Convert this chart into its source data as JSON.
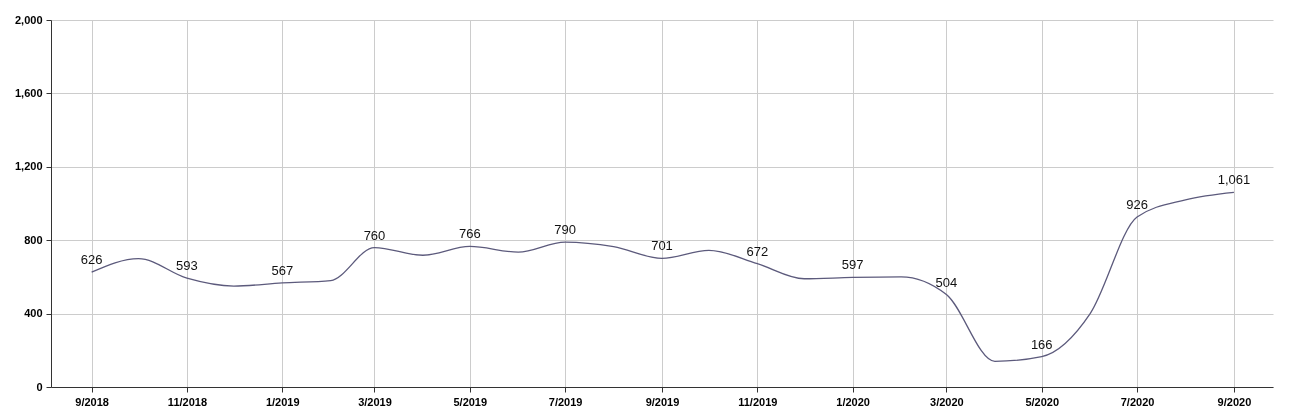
{
  "chart_data": {
    "type": "line",
    "x": [
      "2018-09",
      "2018-10",
      "2018-11",
      "2018-12",
      "2019-01",
      "2019-02",
      "2019-03",
      "2019-04",
      "2019-05",
      "2019-06",
      "2019-07",
      "2019-08",
      "2019-09",
      "2019-10",
      "2019-11",
      "2019-12",
      "2020-01",
      "2020-02",
      "2020-03",
      "2020-04",
      "2020-05",
      "2020-06",
      "2020-07",
      "2020-08",
      "2020-09"
    ],
    "series": [
      {
        "color": "#5c5a7c",
        "values": [
          626,
          700,
          593,
          550,
          567,
          580,
          760,
          718,
          766,
          735,
          790,
          765,
          701,
          745,
          672,
          590,
          597,
          600,
          504,
          140,
          166,
          400,
          926,
          1020,
          1061
        ],
        "value_labels": [
          "626",
          null,
          "593",
          null,
          "567",
          null,
          "760",
          null,
          "766",
          null,
          "790",
          null,
          "701",
          null,
          "672",
          null,
          "597",
          null,
          "504",
          null,
          "166",
          null,
          "926",
          null,
          "1,061"
        ]
      }
    ],
    "xlim": [
      "2018-08-06",
      "2020-09-26"
    ],
    "xticks": [
      {
        "value": "2018-09",
        "label": "9/2018"
      },
      {
        "value": "2018-11",
        "label": "11/2018"
      },
      {
        "value": "2019-01",
        "label": "1/2019"
      },
      {
        "value": "2019-03",
        "label": "3/2019"
      },
      {
        "value": "2019-05",
        "label": "5/2019"
      },
      {
        "value": "2019-07",
        "label": "7/2019"
      },
      {
        "value": "2019-09",
        "label": "9/2019"
      },
      {
        "value": "2019-11",
        "label": "11/2019"
      },
      {
        "value": "2020-01",
        "label": "1/2020"
      },
      {
        "value": "2020-03",
        "label": "3/2020"
      },
      {
        "value": "2020-05",
        "label": "5/2020"
      },
      {
        "value": "2020-07",
        "label": "7/2020"
      },
      {
        "value": "2020-09",
        "label": "9/2020"
      }
    ],
    "ylim": [
      0,
      2000
    ],
    "yticks": [
      0,
      400,
      800,
      {
        "value": 1200,
        "label": "1,200"
      },
      {
        "value": 1600,
        "label": "1,600"
      },
      {
        "value": 2000,
        "label": "2,000"
      }
    ],
    "grid": true,
    "marker": "none",
    "line_style": "solid"
  }
}
